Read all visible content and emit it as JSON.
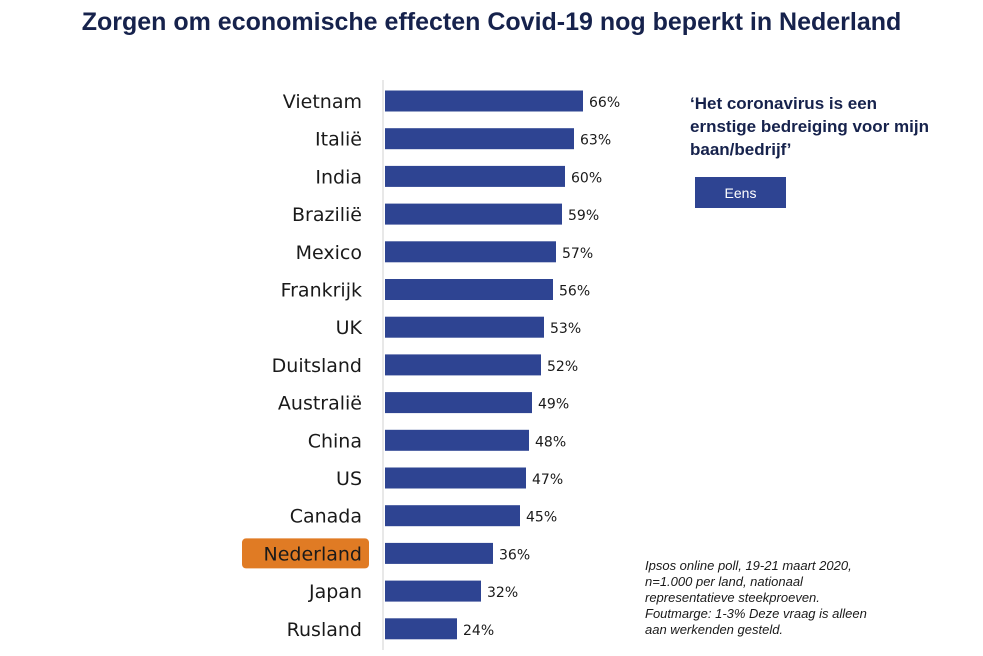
{
  "title": "Zorgen om economische effecten Covid-19 nog beperkt in Nederland",
  "quote": "‘Het coronavirus is een ernstige bedreiging voor mijn baan/bedrijf’",
  "legend": {
    "label": "Eens"
  },
  "footnote": {
    "lines": [
      "Ipsos online poll, 19-21 maart 2020,",
      "n=1.000 per land, nationaal",
      "representatieve steekproeven.",
      "Foutmarge: 1-3%  Deze vraag is alleen",
      "aan werkenden  gesteld."
    ]
  },
  "colors": {
    "bar": "#2e4492",
    "highlight": "#e07b24",
    "title": "#16224c"
  },
  "chart_data": {
    "type": "bar",
    "orientation": "horizontal",
    "title": "Zorgen om economische effecten Covid-19 nog beperkt in Nederland",
    "series": [
      {
        "name": "Eens"
      }
    ],
    "categories": [
      "Vietnam",
      "Italië",
      "India",
      "Brazilië",
      "Mexico",
      "Frankrijk",
      "UK",
      "Duitsland",
      "Australië",
      "China",
      "US",
      "Canada",
      "Nederland",
      "Japan",
      "Rusland"
    ],
    "values": [
      66,
      63,
      60,
      59,
      57,
      56,
      53,
      52,
      49,
      48,
      47,
      45,
      36,
      32,
      24
    ],
    "value_suffix": "%",
    "highlight_category": "Nederland",
    "xlim": [
      0,
      100
    ],
    "xlabel": "",
    "ylabel": "",
    "grid": false,
    "legend_position": "right"
  }
}
